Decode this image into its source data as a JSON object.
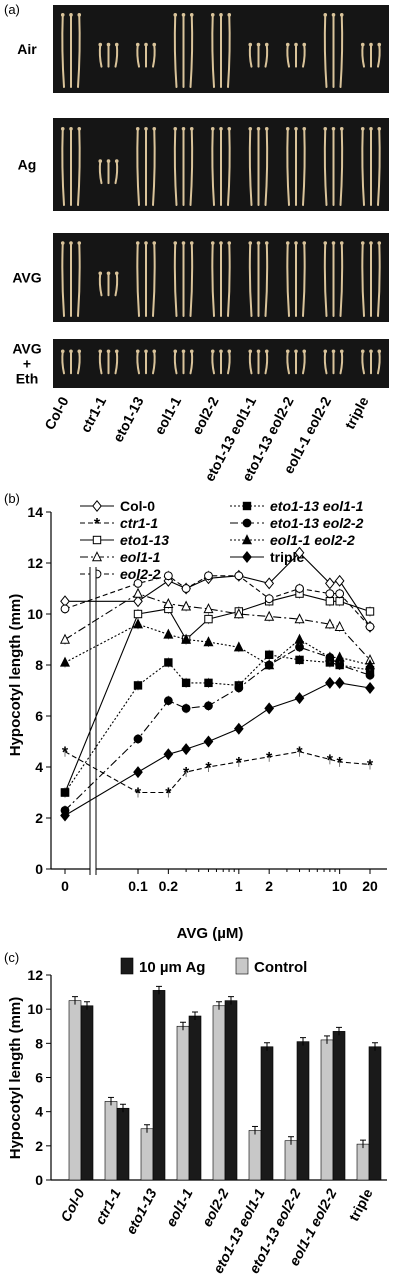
{
  "panel_a": {
    "panel_label": "(a)",
    "rows": [
      "Air",
      "Ag",
      "AVG",
      "AVG\n+\nEth"
    ],
    "genotypes": [
      "Col-0",
      "ctr1-1",
      "eto1-13",
      "eol1-1",
      "eol2-2",
      "eto1-13 eol1-1",
      "eto1-13 eol2-2",
      "eol1-1 eol2-2",
      "triple"
    ],
    "colors": {
      "photo_bg": "#151515",
      "seedling": "#d9c39a"
    }
  },
  "chart_data": [
    {
      "type": "line",
      "panel_label": "(b)",
      "title": "",
      "xlabel": "AVG (µM)",
      "ylabel": "Hypocotyl length (mm)",
      "x_scale": "log with zero break",
      "x_ticks": [
        "0",
        "0.1",
        "0.2",
        "1",
        "2",
        "10",
        "20"
      ],
      "x_tick_values": [
        0,
        0.1,
        0.2,
        1,
        2,
        10,
        20
      ],
      "x": [
        0,
        0.1,
        0.2,
        0.3,
        0.5,
        1,
        2,
        4,
        8,
        10,
        20
      ],
      "ylim": [
        0,
        14
      ],
      "y_ticks": [
        0,
        2,
        4,
        6,
        8,
        10,
        12,
        14
      ],
      "legend_placement": "top",
      "series": [
        {
          "name": "Col-0",
          "marker": "diamond-open",
          "dash": "solid",
          "values": [
            10.5,
            10.5,
            11.3,
            11.0,
            11.4,
            11.5,
            11.2,
            12.4,
            11.2,
            11.3,
            9.5
          ]
        },
        {
          "name": "ctr1-1",
          "marker": "star",
          "dash": "dashed",
          "values": [
            4.6,
            3.0,
            3.0,
            3.8,
            4.0,
            4.2,
            4.4,
            4.6,
            4.3,
            4.2,
            4.1
          ]
        },
        {
          "name": "eto1-13",
          "marker": "square-open",
          "dash": "solid",
          "values": [
            3.0,
            10.0,
            10.2,
            9.0,
            9.8,
            10.1,
            10.5,
            10.8,
            10.5,
            10.5,
            10.1
          ]
        },
        {
          "name": "eol1-1",
          "marker": "triangle-open",
          "dash": "dashdot",
          "values": [
            9.0,
            10.8,
            10.4,
            10.3,
            10.2,
            10.0,
            9.9,
            9.8,
            9.6,
            9.5,
            8.2
          ]
        },
        {
          "name": "eol2-2",
          "marker": "circle-open",
          "dash": "dashed",
          "values": [
            10.2,
            11.2,
            11.5,
            11.0,
            11.5,
            11.5,
            10.6,
            11.0,
            10.8,
            10.8,
            9.5
          ]
        },
        {
          "name": "eto1-13 eol1-1",
          "marker": "square",
          "dash": "dotted",
          "values": [
            3.0,
            7.2,
            8.1,
            7.3,
            7.3,
            7.2,
            8.4,
            8.2,
            8.1,
            8.0,
            7.8
          ]
        },
        {
          "name": "eto1-13 eol2-2",
          "marker": "circle",
          "dash": "dashdot",
          "values": [
            2.3,
            5.1,
            6.6,
            6.3,
            6.4,
            7.1,
            8.0,
            8.7,
            8.3,
            8.0,
            7.6
          ]
        },
        {
          "name": "eol1-1 eol2-2",
          "marker": "triangle",
          "dash": "dotted",
          "values": [
            8.1,
            9.6,
            9.2,
            9.0,
            8.9,
            8.7,
            8.0,
            9.0,
            8.3,
            8.3,
            8.0
          ]
        },
        {
          "name": "triple",
          "marker": "diamond",
          "dash": "solid",
          "values": [
            2.1,
            3.8,
            4.5,
            4.7,
            5.0,
            5.5,
            6.3,
            6.7,
            7.3,
            7.3,
            7.1
          ]
        }
      ]
    },
    {
      "type": "bar",
      "panel_label": "(c)",
      "title": "",
      "xlabel": "",
      "ylabel": "Hypocotyl length (mm)",
      "ylim": [
        0,
        12
      ],
      "y_ticks": [
        0,
        2,
        4,
        6,
        8,
        10,
        12
      ],
      "legend_placement": "top",
      "categories": [
        "Col-0",
        "ctr1-1",
        "eto1-13",
        "eol1-1",
        "eol2-2",
        "eto1-13 eol1-1",
        "eto1-13 eol2-2",
        "eol1-1 eol2-2",
        "triple"
      ],
      "series": [
        {
          "name": "Control",
          "color": "#c8c8c8",
          "values": [
            10.5,
            4.6,
            3.0,
            9.0,
            10.2,
            2.9,
            2.3,
            8.2,
            2.1
          ]
        },
        {
          "name": "10 µm Ag",
          "color": "#1a1a1a",
          "values": [
            10.2,
            4.2,
            11.1,
            9.6,
            10.5,
            7.8,
            8.1,
            8.7,
            7.8
          ]
        }
      ]
    }
  ]
}
